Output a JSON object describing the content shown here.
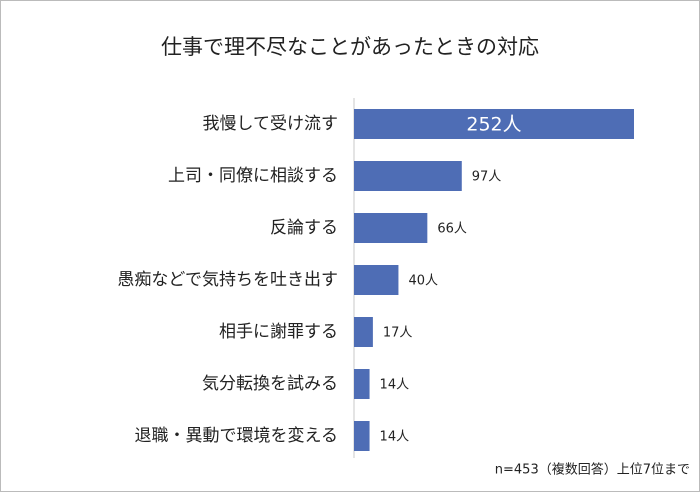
{
  "chart_data": {
    "type": "bar",
    "orientation": "horizontal",
    "title": "仕事で理不尽なことがあったときの対応",
    "categories": [
      "我慢して受け流す",
      "上司・同僚に相談する",
      "反論する",
      "愚痴などで気持ちを吐き出す",
      "相手に謝罪する",
      "気分転換を試みる",
      "退職・異動で環境を変える"
    ],
    "values": [
      252,
      97,
      66,
      40,
      17,
      14,
      14
    ],
    "value_labels": [
      "252人",
      "97人",
      "66人",
      "40人",
      "17人",
      "14人",
      "14人"
    ],
    "color": "#4e6db5",
    "note": "n=453（複数回答）上位7位まで"
  }
}
